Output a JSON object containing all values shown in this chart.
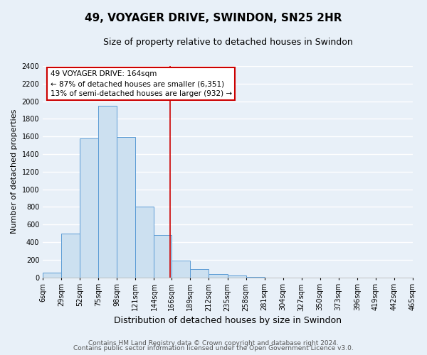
{
  "title": "49, VOYAGER DRIVE, SWINDON, SN25 2HR",
  "subtitle": "Size of property relative to detached houses in Swindon",
  "xlabel": "Distribution of detached houses by size in Swindon",
  "ylabel": "Number of detached properties",
  "bin_edges": [
    6,
    29,
    52,
    75,
    98,
    121,
    144,
    166,
    189,
    212,
    235,
    258,
    281,
    304,
    327,
    350,
    373,
    396,
    419,
    442,
    465
  ],
  "bin_heights": [
    50,
    500,
    1575,
    1950,
    1590,
    800,
    480,
    190,
    90,
    35,
    20,
    5,
    0,
    0,
    0,
    0,
    0,
    0,
    0,
    0
  ],
  "bar_facecolor": "#cce0f0",
  "bar_edgecolor": "#5b9bd5",
  "vline_x": 164,
  "vline_color": "#cc0000",
  "annotation_title": "49 VOYAGER DRIVE: 164sqm",
  "annotation_line1": "← 87% of detached houses are smaller (6,351)",
  "annotation_line2": "13% of semi-detached houses are larger (932) →",
  "annotation_box_edgecolor": "#cc0000",
  "annotation_box_facecolor": "#ffffff",
  "ylim": [
    0,
    2400
  ],
  "yticks": [
    0,
    200,
    400,
    600,
    800,
    1000,
    1200,
    1400,
    1600,
    1800,
    2000,
    2200,
    2400
  ],
  "tick_labels": [
    "6sqm",
    "29sqm",
    "52sqm",
    "75sqm",
    "98sqm",
    "121sqm",
    "144sqm",
    "166sqm",
    "189sqm",
    "212sqm",
    "235sqm",
    "258sqm",
    "281sqm",
    "304sqm",
    "327sqm",
    "350sqm",
    "373sqm",
    "396sqm",
    "419sqm",
    "442sqm",
    "465sqm"
  ],
  "footnote1": "Contains HM Land Registry data © Crown copyright and database right 2024.",
  "footnote2": "Contains public sector information licensed under the Open Government Licence v3.0.",
  "background_color": "#e8f0f8",
  "grid_color": "#ffffff",
  "title_fontsize": 11,
  "subtitle_fontsize": 9,
  "axis_label_fontsize": 8,
  "tick_fontsize": 7,
  "annotation_fontsize": 7.5,
  "footnote_fontsize": 6.5
}
